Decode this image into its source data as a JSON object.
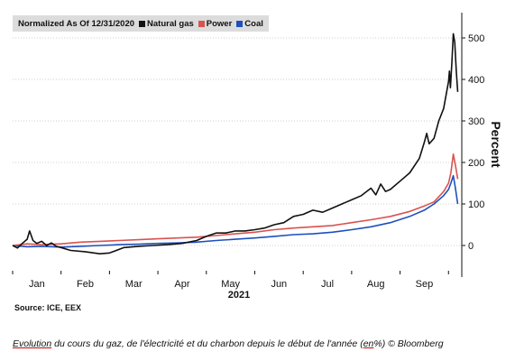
{
  "legend": {
    "prefix": "Normalized As Of 12/31/2020",
    "items": [
      {
        "label": "Natural gas",
        "color": "#111111"
      },
      {
        "label": "Power",
        "color": "#d9534f"
      },
      {
        "label": "Coal",
        "color": "#1f4fbf"
      }
    ]
  },
  "source": "Source: ICE, EEX",
  "caption": {
    "part1": "Evolution",
    "part2": " du cours du gaz, de l'électricité et du charbon depuis le début de l'année (",
    "part3": "en",
    "part4": "%) © Bloomberg"
  },
  "chart_data": {
    "type": "line",
    "xlabel": "2021",
    "ylabel": "Percent",
    "ylim": [
      -70,
      560
    ],
    "yticks": [
      0,
      100,
      200,
      300,
      400,
      500
    ],
    "xticks": [
      {
        "label": "Jan",
        "x": 0.5
      },
      {
        "label": "Feb",
        "x": 1.5
      },
      {
        "label": "Mar",
        "x": 2.5
      },
      {
        "label": "Apr",
        "x": 3.5
      },
      {
        "label": "May",
        "x": 4.5
      },
      {
        "label": "Jun",
        "x": 5.5
      },
      {
        "label": "Jul",
        "x": 6.5
      },
      {
        "label": "Aug",
        "x": 7.5
      },
      {
        "label": "Sep",
        "x": 8.5
      }
    ],
    "xlim": [
      0,
      9.2
    ],
    "series": [
      {
        "name": "Natural gas",
        "color": "#111111",
        "points": [
          [
            0,
            0
          ],
          [
            0.1,
            -6
          ],
          [
            0.2,
            5
          ],
          [
            0.3,
            15
          ],
          [
            0.35,
            35
          ],
          [
            0.42,
            12
          ],
          [
            0.5,
            5
          ],
          [
            0.6,
            10
          ],
          [
            0.7,
            0
          ],
          [
            0.8,
            6
          ],
          [
            0.9,
            -2
          ],
          [
            1.0,
            -5
          ],
          [
            1.2,
            -12
          ],
          [
            1.5,
            -15
          ],
          [
            1.8,
            -20
          ],
          [
            2.0,
            -18
          ],
          [
            2.3,
            -5
          ],
          [
            2.6,
            -2
          ],
          [
            2.9,
            0
          ],
          [
            3.2,
            2
          ],
          [
            3.5,
            5
          ],
          [
            3.8,
            12
          ],
          [
            4.0,
            22
          ],
          [
            4.2,
            30
          ],
          [
            4.4,
            30
          ],
          [
            4.6,
            35
          ],
          [
            4.8,
            35
          ],
          [
            5.0,
            38
          ],
          [
            5.2,
            42
          ],
          [
            5.4,
            50
          ],
          [
            5.6,
            55
          ],
          [
            5.8,
            70
          ],
          [
            6.0,
            75
          ],
          [
            6.2,
            85
          ],
          [
            6.4,
            80
          ],
          [
            6.6,
            90
          ],
          [
            6.8,
            100
          ],
          [
            7.0,
            110
          ],
          [
            7.2,
            120
          ],
          [
            7.4,
            138
          ],
          [
            7.5,
            122
          ],
          [
            7.6,
            148
          ],
          [
            7.7,
            130
          ],
          [
            7.8,
            135
          ],
          [
            8.0,
            155
          ],
          [
            8.2,
            175
          ],
          [
            8.4,
            210
          ],
          [
            8.5,
            248
          ],
          [
            8.55,
            270
          ],
          [
            8.6,
            245
          ],
          [
            8.7,
            258
          ],
          [
            8.8,
            300
          ],
          [
            8.9,
            330
          ],
          [
            9.0,
            395
          ],
          [
            9.02,
            420
          ],
          [
            9.04,
            380
          ],
          [
            9.07,
            440
          ],
          [
            9.1,
            510
          ],
          [
            9.13,
            490
          ],
          [
            9.16,
            420
          ],
          [
            9.19,
            370
          ]
        ]
      },
      {
        "name": "Power",
        "color": "#d9534f",
        "points": [
          [
            0,
            0
          ],
          [
            0.3,
            4
          ],
          [
            0.6,
            2
          ],
          [
            1.0,
            4
          ],
          [
            1.4,
            8
          ],
          [
            1.8,
            10
          ],
          [
            2.2,
            12
          ],
          [
            2.6,
            14
          ],
          [
            3.0,
            16
          ],
          [
            3.4,
            18
          ],
          [
            3.8,
            20
          ],
          [
            4.2,
            24
          ],
          [
            4.6,
            28
          ],
          [
            5.0,
            32
          ],
          [
            5.4,
            38
          ],
          [
            5.8,
            42
          ],
          [
            6.2,
            45
          ],
          [
            6.6,
            48
          ],
          [
            7.0,
            55
          ],
          [
            7.4,
            62
          ],
          [
            7.8,
            70
          ],
          [
            8.2,
            82
          ],
          [
            8.5,
            95
          ],
          [
            8.7,
            105
          ],
          [
            8.9,
            130
          ],
          [
            9.0,
            150
          ],
          [
            9.05,
            175
          ],
          [
            9.1,
            220
          ],
          [
            9.14,
            195
          ],
          [
            9.19,
            160
          ]
        ]
      },
      {
        "name": "Coal",
        "color": "#1f4fbf",
        "points": [
          [
            0,
            0
          ],
          [
            0.3,
            -3
          ],
          [
            0.6,
            -2
          ],
          [
            1.0,
            -4
          ],
          [
            1.4,
            -2
          ],
          [
            1.8,
            0
          ],
          [
            2.2,
            2
          ],
          [
            2.6,
            3
          ],
          [
            3.0,
            5
          ],
          [
            3.4,
            6
          ],
          [
            3.8,
            8
          ],
          [
            4.2,
            12
          ],
          [
            4.6,
            15
          ],
          [
            5.0,
            18
          ],
          [
            5.4,
            22
          ],
          [
            5.8,
            26
          ],
          [
            6.2,
            28
          ],
          [
            6.6,
            32
          ],
          [
            7.0,
            38
          ],
          [
            7.4,
            45
          ],
          [
            7.8,
            55
          ],
          [
            8.2,
            70
          ],
          [
            8.5,
            85
          ],
          [
            8.7,
            100
          ],
          [
            8.9,
            120
          ],
          [
            9.0,
            135
          ],
          [
            9.05,
            150
          ],
          [
            9.1,
            168
          ],
          [
            9.14,
            140
          ],
          [
            9.19,
            100
          ]
        ]
      }
    ]
  }
}
